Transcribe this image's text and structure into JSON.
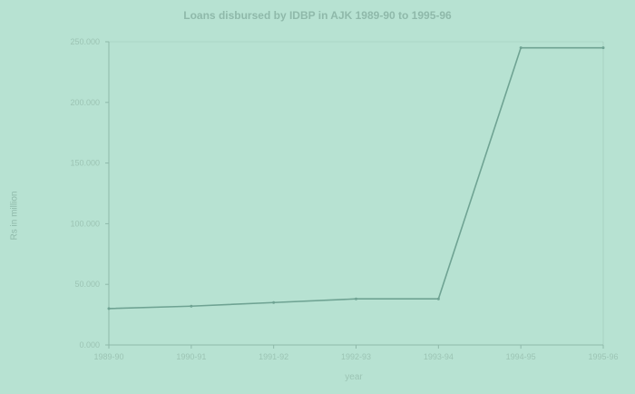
{
  "chart_data": {
    "type": "line",
    "title": "Loans disbursed by IDBP in AJK 1989-90 to 1995-96",
    "xlabel": "year",
    "ylabel": "Rs in million",
    "categories": [
      "1989-90",
      "1990-91",
      "1991-92",
      "1992-93",
      "1993-94",
      "1994-95",
      "1995-96"
    ],
    "series": [
      {
        "values": [
          30000,
          32000,
          35000,
          38000,
          38000,
          245000,
          245000
        ]
      }
    ],
    "yticks": [
      0,
      50000,
      100000,
      150000,
      200000,
      250000
    ],
    "yticklabels": [
      "0.000",
      "50.000",
      "100.000",
      "150.000",
      "200.000",
      "250.000"
    ],
    "ylim": [
      0,
      250000
    ],
    "grid": false,
    "colors": {
      "background": "#b7e2d2",
      "line": "#6fa393",
      "axis": "#8fb9aa",
      "text": "#9cc4b4"
    }
  }
}
